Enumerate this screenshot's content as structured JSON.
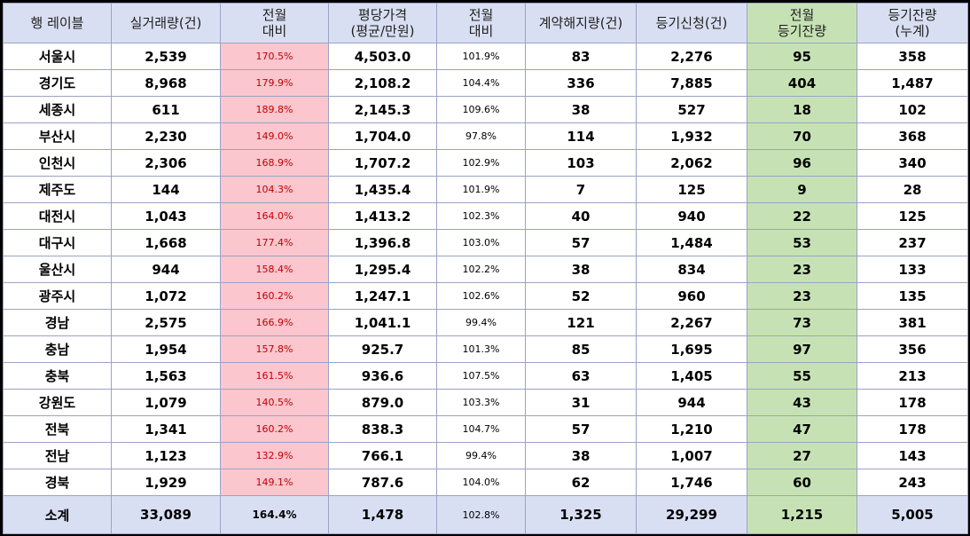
{
  "headers": [
    {
      "lines": [
        "행 레이블"
      ]
    },
    {
      "lines": [
        "실거래량(건)"
      ]
    },
    {
      "lines": [
        "전월",
        "대비"
      ]
    },
    {
      "lines": [
        "평당가격",
        "(평균/만원)"
      ]
    },
    {
      "lines": [
        "전월",
        "대비"
      ]
    },
    {
      "lines": [
        "계약해지량(건)"
      ]
    },
    {
      "lines": [
        "등기신청(건)"
      ]
    },
    {
      "lines": [
        "전월",
        "등기잔량"
      ]
    },
    {
      "lines": [
        "등기잔량",
        "(누계)"
      ]
    }
  ],
  "rows": [
    [
      "서울시",
      "2,539",
      "170.5%",
      "4,503.0",
      "101.9%",
      "83",
      "2,276",
      "95",
      "358"
    ],
    [
      "경기도",
      "8,968",
      "179.9%",
      "2,108.2",
      "104.4%",
      "336",
      "7,885",
      "404",
      "1,487"
    ],
    [
      "세종시",
      "611",
      "189.8%",
      "2,145.3",
      "109.6%",
      "38",
      "527",
      "18",
      "102"
    ],
    [
      "부산시",
      "2,230",
      "149.0%",
      "1,704.0",
      "97.8%",
      "114",
      "1,932",
      "70",
      "368"
    ],
    [
      "인천시",
      "2,306",
      "168.9%",
      "1,707.2",
      "102.9%",
      "103",
      "2,062",
      "96",
      "340"
    ],
    [
      "제주도",
      "144",
      "104.3%",
      "1,435.4",
      "101.9%",
      "7",
      "125",
      "9",
      "28"
    ],
    [
      "대전시",
      "1,043",
      "164.0%",
      "1,413.2",
      "102.3%",
      "40",
      "940",
      "22",
      "125"
    ],
    [
      "대구시",
      "1,668",
      "177.4%",
      "1,396.8",
      "103.0%",
      "57",
      "1,484",
      "53",
      "237"
    ],
    [
      "울산시",
      "944",
      "158.4%",
      "1,295.4",
      "102.2%",
      "38",
      "834",
      "23",
      "133"
    ],
    [
      "광주시",
      "1,072",
      "160.2%",
      "1,247.1",
      "102.6%",
      "52",
      "960",
      "23",
      "135"
    ],
    [
      "경남",
      "2,575",
      "166.9%",
      "1,041.1",
      "99.4%",
      "121",
      "2,267",
      "73",
      "381"
    ],
    [
      "충남",
      "1,954",
      "157.8%",
      "925.7",
      "101.3%",
      "85",
      "1,695",
      "97",
      "356"
    ],
    [
      "충북",
      "1,563",
      "161.5%",
      "936.6",
      "107.5%",
      "63",
      "1,405",
      "55",
      "213"
    ],
    [
      "강원도",
      "1,079",
      "140.5%",
      "879.0",
      "103.3%",
      "31",
      "944",
      "43",
      "178"
    ],
    [
      "전북",
      "1,341",
      "160.2%",
      "838.3",
      "104.7%",
      "57",
      "1,210",
      "47",
      "178"
    ],
    [
      "전남",
      "1,123",
      "132.9%",
      "766.1",
      "99.4%",
      "38",
      "1,007",
      "27",
      "143"
    ],
    [
      "경북",
      "1,929",
      "149.1%",
      "787.6",
      "104.0%",
      "62",
      "1,746",
      "60",
      "243"
    ]
  ],
  "total": [
    "소계",
    "33,089",
    "164.4%",
    "1,478",
    "102.8%",
    "1,325",
    "29,299",
    "1,215",
    "5,005"
  ],
  "colors": {
    "header_bg": "#d9dff2",
    "pink_bg": "#fbc6ce",
    "pink_text": "#c00000",
    "green_bg": "#c6e2b4",
    "border": "#9aa3c4"
  }
}
